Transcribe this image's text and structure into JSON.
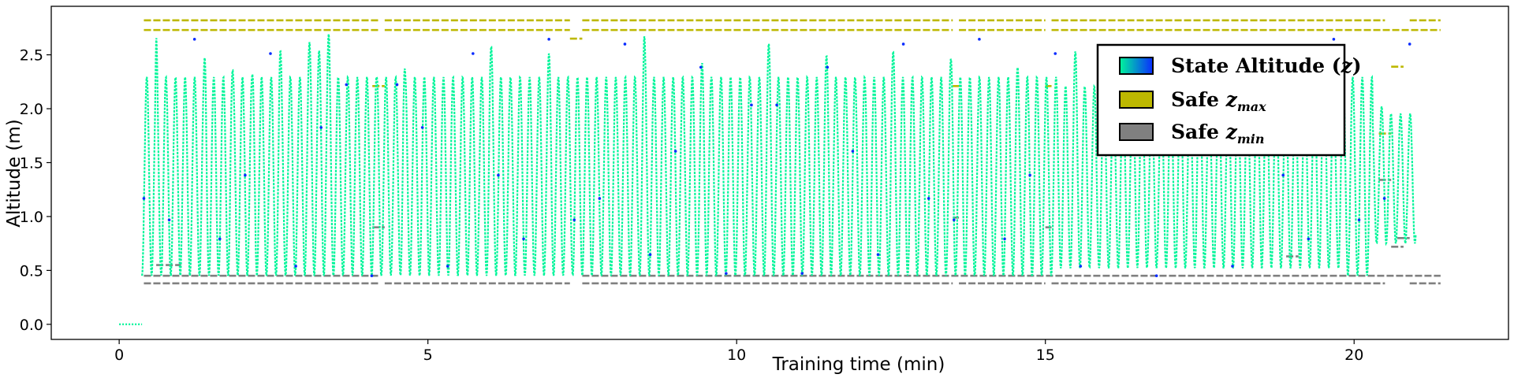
{
  "chart_data": {
    "type": "scatter",
    "xlabel": "Training time (min)",
    "ylabel": "Altitude (m)",
    "xlim": [
      -1.1,
      22.5
    ],
    "ylim": [
      -0.14,
      2.95
    ],
    "xticks": [
      0,
      5,
      10,
      15,
      20
    ],
    "yticks": [
      0.0,
      0.5,
      1.0,
      1.5,
      2.0,
      2.5
    ],
    "xtick_labels": [
      "0",
      "5",
      "10",
      "15",
      "20"
    ],
    "ytick_labels": [
      "0.0",
      "0.5",
      "1.0",
      "1.5",
      "2.0",
      "2.5"
    ],
    "grid": false,
    "legend_placement": "upper-right",
    "legend": [
      {
        "name": "State Altitude",
        "symbol": "z",
        "sub": "",
        "color": "#00f59a",
        "color2": "#0a2cff"
      },
      {
        "name": "Safe",
        "symbol": "z",
        "sub": "max",
        "color": "#bdb800"
      },
      {
        "name": "Safe",
        "symbol": "z",
        "sub": "min",
        "color": "#808080"
      }
    ],
    "colors": {
      "state_low": "#00f59a",
      "state_high": "#0a2cff",
      "safe_zmax": "#bdb800",
      "safe_zmin": "#808080"
    },
    "state_altitude": {
      "x": [
        0,
        0.37,
        0.4,
        0.45,
        0.5,
        0.6,
        0.8,
        1.0,
        1.2,
        1.4,
        1.6,
        1.8,
        2.0,
        2.2,
        2.4,
        2.6,
        2.8,
        3.0,
        3.2,
        3.4,
        3.6,
        3.8,
        4.0,
        4.2,
        4.4,
        4.6,
        4.8,
        5.0,
        5.5,
        6.0,
        6.5,
        7.0,
        7.3,
        7.5,
        8.0,
        8.5,
        9.0,
        9.5,
        10.0,
        10.5,
        11.0,
        11.5,
        12.0,
        12.5,
        13.0,
        13.5,
        14.0,
        14.5,
        15.0,
        15.5,
        16.0,
        16.5,
        17.0,
        17.5,
        18.0,
        18.5,
        19.0,
        19.5,
        20.0,
        20.5,
        20.7,
        21.0
      ],
      "y": [
        0.0,
        0.0,
        2.5,
        0.45,
        0.5,
        2.7,
        0.5,
        2.7,
        0.3,
        2.7,
        0.45,
        2.7,
        1.0,
        2.7,
        1.5,
        2.7,
        0.45,
        2.7,
        2.5,
        2.7,
        1.5,
        2.7,
        0.45,
        2.6,
        0.45,
        2.7,
        0.45,
        2.7,
        0.45,
        2.7,
        0.45,
        2.7,
        0.45,
        2.5,
        0.45,
        2.7,
        0.45,
        2.7,
        0.45,
        2.7,
        0.45,
        2.7,
        0.45,
        2.7,
        0.45,
        2.6,
        0.5,
        2.6,
        0.5,
        2.6,
        0.5,
        2.6,
        0.5,
        2.6,
        0.5,
        2.6,
        0.5,
        2.6,
        0.6,
        2.2,
        0.8,
        1.1
      ]
    },
    "safe_zmax": {
      "segments": [
        {
          "x": [
            0.4,
            4.2
          ],
          "y": 2.82
        },
        {
          "x": [
            4.3,
            7.3
          ],
          "y": 2.82
        },
        {
          "x": [
            7.5,
            13.5
          ],
          "y": 2.82
        },
        {
          "x": [
            13.6,
            15.0
          ],
          "y": 2.82
        },
        {
          "x": [
            15.1,
            20.5
          ],
          "y": 2.82
        },
        {
          "x": [
            20.9,
            21.4
          ],
          "y": 2.82
        },
        {
          "x": [
            0.4,
            4.2
          ],
          "y": 2.73
        },
        {
          "x": [
            4.3,
            7.3
          ],
          "y": 2.73
        },
        {
          "x": [
            7.5,
            13.5
          ],
          "y": 2.73
        },
        {
          "x": [
            13.6,
            15.0
          ],
          "y": 2.73
        },
        {
          "x": [
            15.1,
            21.4
          ],
          "y": 2.73
        },
        {
          "x": [
            4.1,
            4.3
          ],
          "y": 2.21
        },
        {
          "x": [
            7.3,
            7.5
          ],
          "y": 2.65
        },
        {
          "x": [
            13.5,
            13.6
          ],
          "y": 2.21
        },
        {
          "x": [
            15.0,
            15.1
          ],
          "y": 2.21
        },
        {
          "x": [
            20.4,
            20.6
          ],
          "y": 1.77
        },
        {
          "x": [
            20.6,
            20.8
          ],
          "y": 2.39
        }
      ]
    },
    "safe_zmin": {
      "segments": [
        {
          "x": [
            0.4,
            4.2
          ],
          "y": 0.38
        },
        {
          "x": [
            4.3,
            7.3
          ],
          "y": 0.38
        },
        {
          "x": [
            7.5,
            13.5
          ],
          "y": 0.38
        },
        {
          "x": [
            13.6,
            15.0
          ],
          "y": 0.38
        },
        {
          "x": [
            15.1,
            20.5
          ],
          "y": 0.38
        },
        {
          "x": [
            20.9,
            21.4
          ],
          "y": 0.38
        },
        {
          "x": [
            0.4,
            4.2
          ],
          "y": 0.45
        },
        {
          "x": [
            7.5,
            21.4
          ],
          "y": 0.45
        },
        {
          "x": [
            0.6,
            1.0
          ],
          "y": 0.55
        },
        {
          "x": [
            4.1,
            4.3
          ],
          "y": 0.9
        },
        {
          "x": [
            13.5,
            13.6
          ],
          "y": 0.99
        },
        {
          "x": [
            15.0,
            15.1
          ],
          "y": 0.9
        },
        {
          "x": [
            18.9,
            19.1
          ],
          "y": 0.63
        },
        {
          "x": [
            20.4,
            20.6
          ],
          "y": 1.34
        },
        {
          "x": [
            20.6,
            20.8
          ],
          "y": 0.72
        },
        {
          "x": [
            20.7,
            20.9
          ],
          "y": 0.8
        }
      ]
    }
  }
}
